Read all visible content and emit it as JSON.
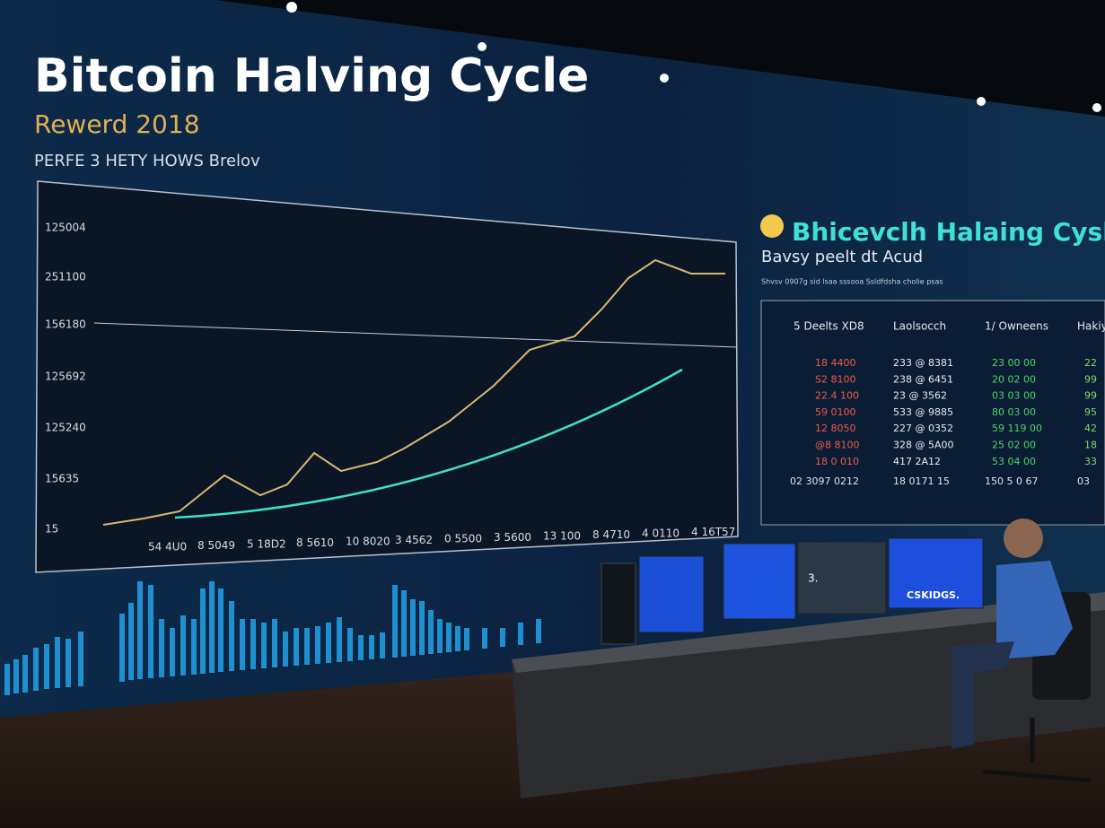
{
  "wall_chart": {
    "title": "Bitcoin Halving Cycle",
    "subtitle": "Rewerd 2018",
    "caption": "PERFE 3 HETY HOWS Brelov",
    "y_labels": [
      "125004",
      "251100",
      "156180",
      "125692",
      "125240",
      "15635",
      "15"
    ],
    "x_labels": [
      "54 4U0",
      "8 5049",
      "5 18D2",
      "8 5610",
      "10 8020",
      "3 4562",
      "0 5500",
      "3 5600",
      "13 100",
      "8 4710",
      "4 0110",
      "4 16T57"
    ]
  },
  "side_panel": {
    "title": "Bhicevclh Halaing Cysln",
    "subtitle": "Bavsy peelt dt Acud",
    "note": "Shvsv 0907g sid lsaa sssooa Ssldfdsha cholie psas",
    "header": [
      "5 Deelts XD8",
      "Laolsocch",
      "1/ Owneens",
      "Hakiy"
    ],
    "rows": [
      [
        "18 4400",
        "233 @ 8381",
        "23 00 00",
        "22"
      ],
      [
        "S2 8100",
        "238 @ 6451",
        "20 02 00",
        "99"
      ],
      [
        "22.4 100",
        "23 @ 3562",
        "03 03 00",
        "99"
      ],
      [
        "59 0100",
        "533 @ 9885",
        "80 03 00",
        "95"
      ],
      [
        "12 8050",
        "227 @ 0352",
        "59 119 00",
        "42"
      ],
      [
        "@8 8100",
        "328 @ 5A00",
        "25 02 00",
        "18"
      ],
      [
        "18 0 010",
        "417 2A12",
        "53 04 00",
        "33"
      ]
    ],
    "footer": [
      "02 3097 0212",
      "18 0171 15",
      "150 5 0 67",
      "03"
    ]
  },
  "monitors": {
    "left_text": "3.",
    "right_text": "CSKIDGS."
  }
}
